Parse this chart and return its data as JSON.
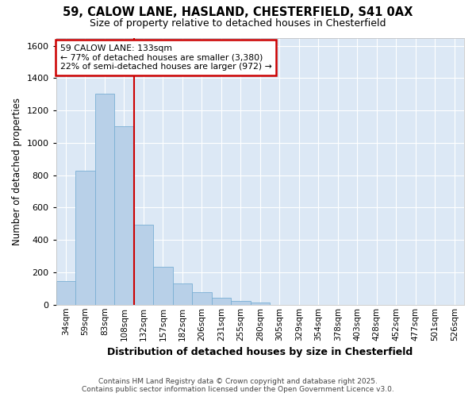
{
  "title_line1": "59, CALOW LANE, HASLAND, CHESTERFIELD, S41 0AX",
  "title_line2": "Size of property relative to detached houses in Chesterfield",
  "xlabel": "Distribution of detached houses by size in Chesterfield",
  "ylabel": "Number of detached properties",
  "categories": [
    "34sqm",
    "59sqm",
    "83sqm",
    "108sqm",
    "132sqm",
    "157sqm",
    "182sqm",
    "206sqm",
    "231sqm",
    "255sqm",
    "280sqm",
    "305sqm",
    "329sqm",
    "354sqm",
    "378sqm",
    "403sqm",
    "428sqm",
    "452sqm",
    "477sqm",
    "501sqm",
    "526sqm"
  ],
  "values": [
    145,
    830,
    1305,
    1105,
    495,
    235,
    130,
    75,
    45,
    25,
    15,
    0,
    0,
    0,
    0,
    0,
    0,
    0,
    0,
    0,
    0
  ],
  "bar_color": "#b8d0e8",
  "bar_edge_color": "#7aafd4",
  "vline_color": "#cc0000",
  "annotation_title": "59 CALOW LANE: 133sqm",
  "annotation_line2": "← 77% of detached houses are smaller (3,380)",
  "annotation_line3": "22% of semi-detached houses are larger (972) →",
  "annotation_box_edgecolor": "#cc0000",
  "ylim": [
    0,
    1650
  ],
  "yticks": [
    0,
    200,
    400,
    600,
    800,
    1000,
    1200,
    1400,
    1600
  ],
  "fig_bg_color": "#ffffff",
  "plot_bg_color": "#dce8f5",
  "grid_color": "#ffffff",
  "footer_line1": "Contains HM Land Registry data © Crown copyright and database right 2025.",
  "footer_line2": "Contains public sector information licensed under the Open Government Licence v3.0."
}
